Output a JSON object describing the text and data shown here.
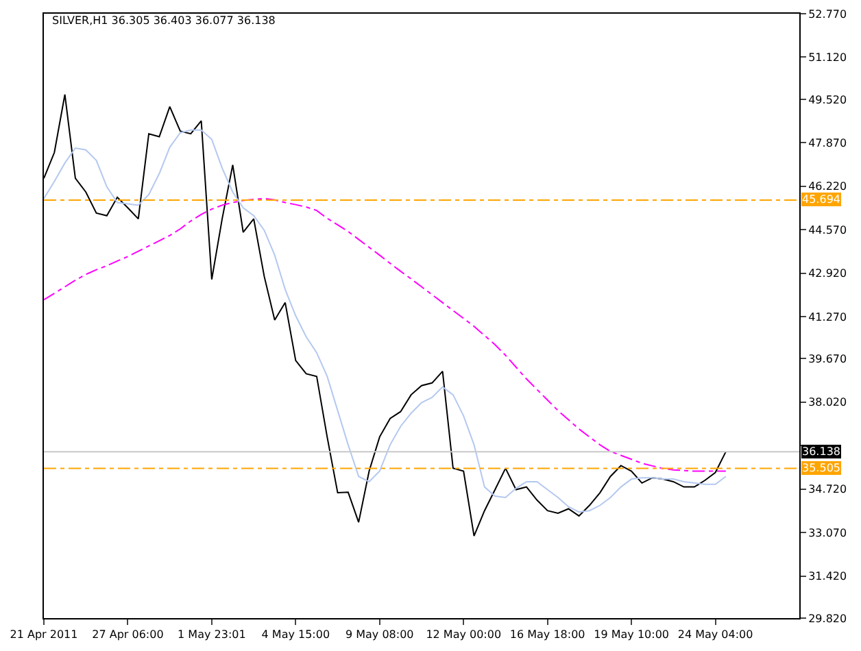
{
  "chart_data": {
    "type": "line",
    "title": "SILVER,H1 36.305 36.403 36.077 36.138",
    "categories": [
      "21 Apr 2011",
      null,
      null,
      null,
      null,
      null,
      null,
      null,
      "27 Apr 06:00",
      null,
      null,
      null,
      null,
      null,
      null,
      null,
      "1 May 23:01",
      null,
      null,
      null,
      null,
      null,
      null,
      null,
      "4 May 15:00",
      null,
      null,
      null,
      null,
      null,
      null,
      null,
      "9 May 08:00",
      null,
      null,
      null,
      null,
      null,
      null,
      null,
      "12 May 00:00",
      null,
      null,
      null,
      null,
      null,
      null,
      null,
      "16 May 18:00",
      null,
      null,
      null,
      null,
      null,
      null,
      null,
      "19 May 10:00",
      null,
      null,
      null,
      null,
      null,
      null,
      null,
      "24 May 04:00",
      null,
      null,
      null,
      null,
      null,
      null,
      null,
      null
    ],
    "series": [
      {
        "color": "#000000",
        "values": [
          46.52,
          47.5,
          49.7,
          46.52,
          46.0,
          45.2,
          45.1,
          45.8,
          45.4,
          44.98,
          48.21,
          48.1,
          49.24,
          48.31,
          48.21,
          48.7,
          42.68,
          45.0,
          47.03,
          44.47,
          44.98,
          42.8,
          41.14,
          41.8,
          39.6,
          39.1,
          39.0,
          36.7,
          34.58,
          34.6,
          33.46,
          35.4,
          36.7,
          37.4,
          37.66,
          38.3,
          38.65,
          38.75,
          39.19,
          35.51,
          35.4,
          32.94,
          33.9,
          34.7,
          35.51,
          34.7,
          34.8,
          34.3,
          33.9,
          33.8,
          33.97,
          33.7,
          34.1,
          34.58,
          35.2,
          35.61,
          35.4,
          34.95,
          35.15,
          35.1,
          35.0,
          34.8,
          34.8,
          35.05,
          35.35,
          36.14,
          null,
          null,
          null,
          null,
          null,
          null,
          null
        ]
      },
      {
        "color": "#b4c8f0",
        "values": [
          45.75,
          46.4,
          47.1,
          47.67,
          47.6,
          47.2,
          46.2,
          45.6,
          45.55,
          45.5,
          45.9,
          46.7,
          47.7,
          48.25,
          48.35,
          48.35,
          48.0,
          46.9,
          46.0,
          45.4,
          45.1,
          44.55,
          43.6,
          42.3,
          41.3,
          40.5,
          39.9,
          39.0,
          37.7,
          36.4,
          35.2,
          35.0,
          35.4,
          36.4,
          37.1,
          37.6,
          38.0,
          38.2,
          38.6,
          38.3,
          37.5,
          36.4,
          34.8,
          34.45,
          34.4,
          34.75,
          35.0,
          35.0,
          34.7,
          34.4,
          34.05,
          33.85,
          33.9,
          34.1,
          34.4,
          34.8,
          35.1,
          35.15,
          35.15,
          35.1,
          35.1,
          35.0,
          34.95,
          34.9,
          34.9,
          35.2,
          null,
          null,
          null,
          null,
          null,
          null,
          null
        ]
      },
      {
        "color": "#ff00ff",
        "line_style": "dashed",
        "values": [
          41.91,
          42.15,
          42.4,
          42.65,
          42.87,
          43.05,
          43.2,
          43.38,
          43.55,
          43.75,
          43.95,
          44.15,
          44.35,
          44.6,
          44.9,
          45.15,
          45.35,
          45.5,
          45.6,
          45.68,
          45.72,
          45.75,
          45.7,
          45.6,
          45.52,
          45.43,
          45.3,
          45.0,
          44.75,
          44.5,
          44.2,
          43.9,
          43.6,
          43.29,
          42.99,
          42.7,
          42.4,
          42.1,
          41.8,
          41.5,
          41.2,
          40.9,
          40.55,
          40.2,
          39.8,
          39.35,
          38.9,
          38.5,
          38.1,
          37.7,
          37.35,
          37.0,
          36.7,
          36.4,
          36.15,
          36.0,
          35.85,
          35.7,
          35.6,
          35.5,
          35.45,
          35.42,
          35.4,
          35.4,
          35.4,
          35.4,
          null,
          null,
          null,
          null,
          null,
          null,
          null
        ]
      }
    ],
    "ylim": [
      29.82,
      52.77
    ],
    "yticks": [
      {
        "value": 29.82,
        "label": "29.820"
      },
      {
        "value": 31.42,
        "label": "31.420"
      },
      {
        "value": 33.07,
        "label": "33.070"
      },
      {
        "value": 34.72,
        "label": "34.720"
      },
      {
        "value": 36.37,
        "label": null
      },
      {
        "value": 38.02,
        "label": "38.020"
      },
      {
        "value": 39.67,
        "label": "39.670"
      },
      {
        "value": 41.27,
        "label": "41.270"
      },
      {
        "value": 42.92,
        "label": "42.920"
      },
      {
        "value": 44.57,
        "label": "44.570"
      },
      {
        "value": 46.22,
        "label": "46.220"
      },
      {
        "value": 47.87,
        "label": "47.870"
      },
      {
        "value": 49.52,
        "label": "49.520"
      },
      {
        "value": 51.12,
        "label": "51.120"
      },
      {
        "value": 52.77,
        "label": "52.770"
      }
    ],
    "ref_lines": [
      {
        "axis": "y",
        "value": 45.694,
        "label": "45.694",
        "color": "#ffa500",
        "line_style": "dashed"
      },
      {
        "axis": "y",
        "value": 35.505,
        "label": "35.505",
        "color": "#ffa500",
        "line_style": "dashed"
      },
      {
        "axis": "y",
        "value": 36.138,
        "label": "36.138",
        "color": "#c8c8c8",
        "line_style": "solid"
      }
    ]
  }
}
